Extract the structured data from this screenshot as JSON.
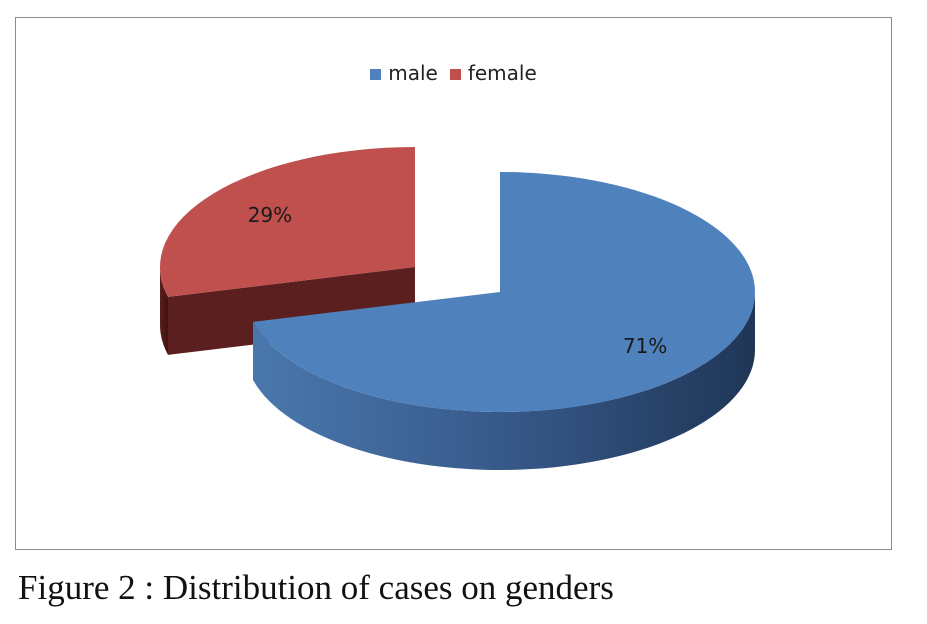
{
  "chart_data": {
    "type": "pie",
    "categories": [
      "male",
      "female"
    ],
    "values": [
      71,
      29
    ],
    "data_labels": [
      "71%",
      "29%"
    ],
    "colors": [
      "#4f81bd",
      "#c0504d"
    ],
    "side_colors": [
      "#2b4a73",
      "#5a1f1e"
    ],
    "legend_position": "top",
    "exploded": "female",
    "style": "3d"
  },
  "legend": [
    {
      "label": "male",
      "color": "#4f81bd"
    },
    {
      "label": "female",
      "color": "#c0504d"
    }
  ],
  "caption": "Figure 2 : Distribution of cases on genders"
}
